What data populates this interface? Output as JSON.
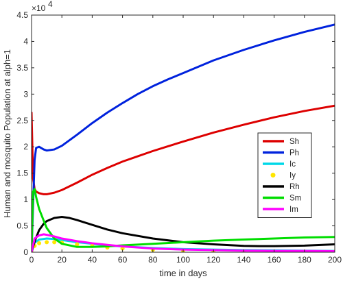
{
  "chart_data": {
    "type": "line",
    "title": "",
    "xlabel": "time in days",
    "ylabel": "Human and mosquito Population at alph=1",
    "xlim": [
      0,
      200
    ],
    "ylim": [
      0,
      45000
    ],
    "x_ticks": [
      0,
      20,
      40,
      60,
      80,
      100,
      120,
      140,
      160,
      180,
      200
    ],
    "y_ticks": [
      0,
      5000,
      10000,
      15000,
      20000,
      25000,
      30000,
      35000,
      40000,
      45000
    ],
    "y_tick_labels": [
      "0",
      "0.5",
      "1",
      "1.5",
      "2",
      "2.5",
      "3",
      "3.5",
      "4",
      "4.5"
    ],
    "y_multiplier": "×10",
    "y_multiplier_exponent": "4",
    "grid": false,
    "legend_position": "right",
    "series": [
      {
        "name": "Sh",
        "color": "#dd0000",
        "style": "line",
        "x": [
          0,
          1,
          2,
          3,
          5,
          8,
          10,
          15,
          20,
          30,
          40,
          50,
          60,
          70,
          80,
          90,
          100,
          120,
          140,
          160,
          180,
          200
        ],
        "y": [
          26500,
          14000,
          12000,
          11500,
          11200,
          11000,
          11000,
          11300,
          11800,
          13200,
          14700,
          16000,
          17200,
          18200,
          19200,
          20100,
          21000,
          22700,
          24200,
          25600,
          26800,
          27800
        ]
      },
      {
        "name": "Ph",
        "color": "#0022dd",
        "style": "line",
        "x": [
          0,
          1,
          2,
          3,
          5,
          8,
          10,
          15,
          20,
          30,
          40,
          50,
          60,
          70,
          80,
          90,
          100,
          120,
          140,
          160,
          180,
          200
        ],
        "y": [
          0,
          9000,
          17500,
          19800,
          20000,
          19500,
          19300,
          19500,
          20200,
          22300,
          24500,
          26500,
          28300,
          30000,
          31500,
          32800,
          34000,
          36400,
          38400,
          40200,
          41800,
          43200
        ]
      },
      {
        "name": "Ic",
        "color": "#00d8e8",
        "style": "line",
        "x": [
          0,
          2,
          5,
          10,
          15,
          20,
          30,
          40,
          50,
          60,
          80,
          100,
          120,
          140,
          160,
          180,
          200
        ],
        "y": [
          0,
          1800,
          2400,
          2600,
          2500,
          2300,
          1900,
          1600,
          1300,
          1100,
          800,
          600,
          500,
          400,
          350,
          300,
          250
        ]
      },
      {
        "name": "Iy",
        "color": "#ffe600",
        "style": "dots",
        "x": [
          0,
          2,
          5,
          10,
          15,
          20,
          30,
          40,
          50,
          60,
          80,
          100,
          120,
          140,
          160,
          180,
          200
        ],
        "y": [
          0,
          1200,
          1700,
          1900,
          1900,
          1800,
          1500,
          1200,
          900,
          700,
          450,
          300,
          200,
          150,
          100,
          80,
          60
        ]
      },
      {
        "name": "Rh",
        "color": "#000000",
        "style": "line",
        "x": [
          0,
          2,
          5,
          8,
          10,
          15,
          20,
          25,
          30,
          40,
          50,
          60,
          80,
          100,
          120,
          140,
          150,
          160,
          180,
          200
        ],
        "y": [
          0,
          2000,
          4200,
          5400,
          5900,
          6500,
          6700,
          6500,
          6100,
          5200,
          4300,
          3600,
          2600,
          1900,
          1500,
          1200,
          1150,
          1150,
          1250,
          1500
        ]
      },
      {
        "name": "Sm",
        "color": "#00dd00",
        "style": "line",
        "x": [
          0,
          1,
          2,
          3,
          5,
          8,
          10,
          15,
          20,
          30,
          40,
          50,
          60,
          80,
          100,
          120,
          140,
          160,
          180,
          200
        ],
        "y": [
          0,
          11500,
          12000,
          10500,
          8200,
          6000,
          4600,
          2600,
          1600,
          1000,
          1000,
          1100,
          1300,
          1600,
          1900,
          2200,
          2400,
          2600,
          2800,
          2900
        ]
      },
      {
        "name": "Im",
        "color": "#ff00ff",
        "style": "line",
        "x": [
          0,
          2,
          5,
          8,
          10,
          15,
          20,
          30,
          40,
          50,
          60,
          80,
          100,
          120,
          140,
          160,
          180,
          200
        ],
        "y": [
          0,
          2600,
          3200,
          3400,
          3300,
          3000,
          2600,
          2100,
          1700,
          1400,
          1100,
          700,
          500,
          400,
          300,
          250,
          250,
          200
        ]
      }
    ]
  }
}
